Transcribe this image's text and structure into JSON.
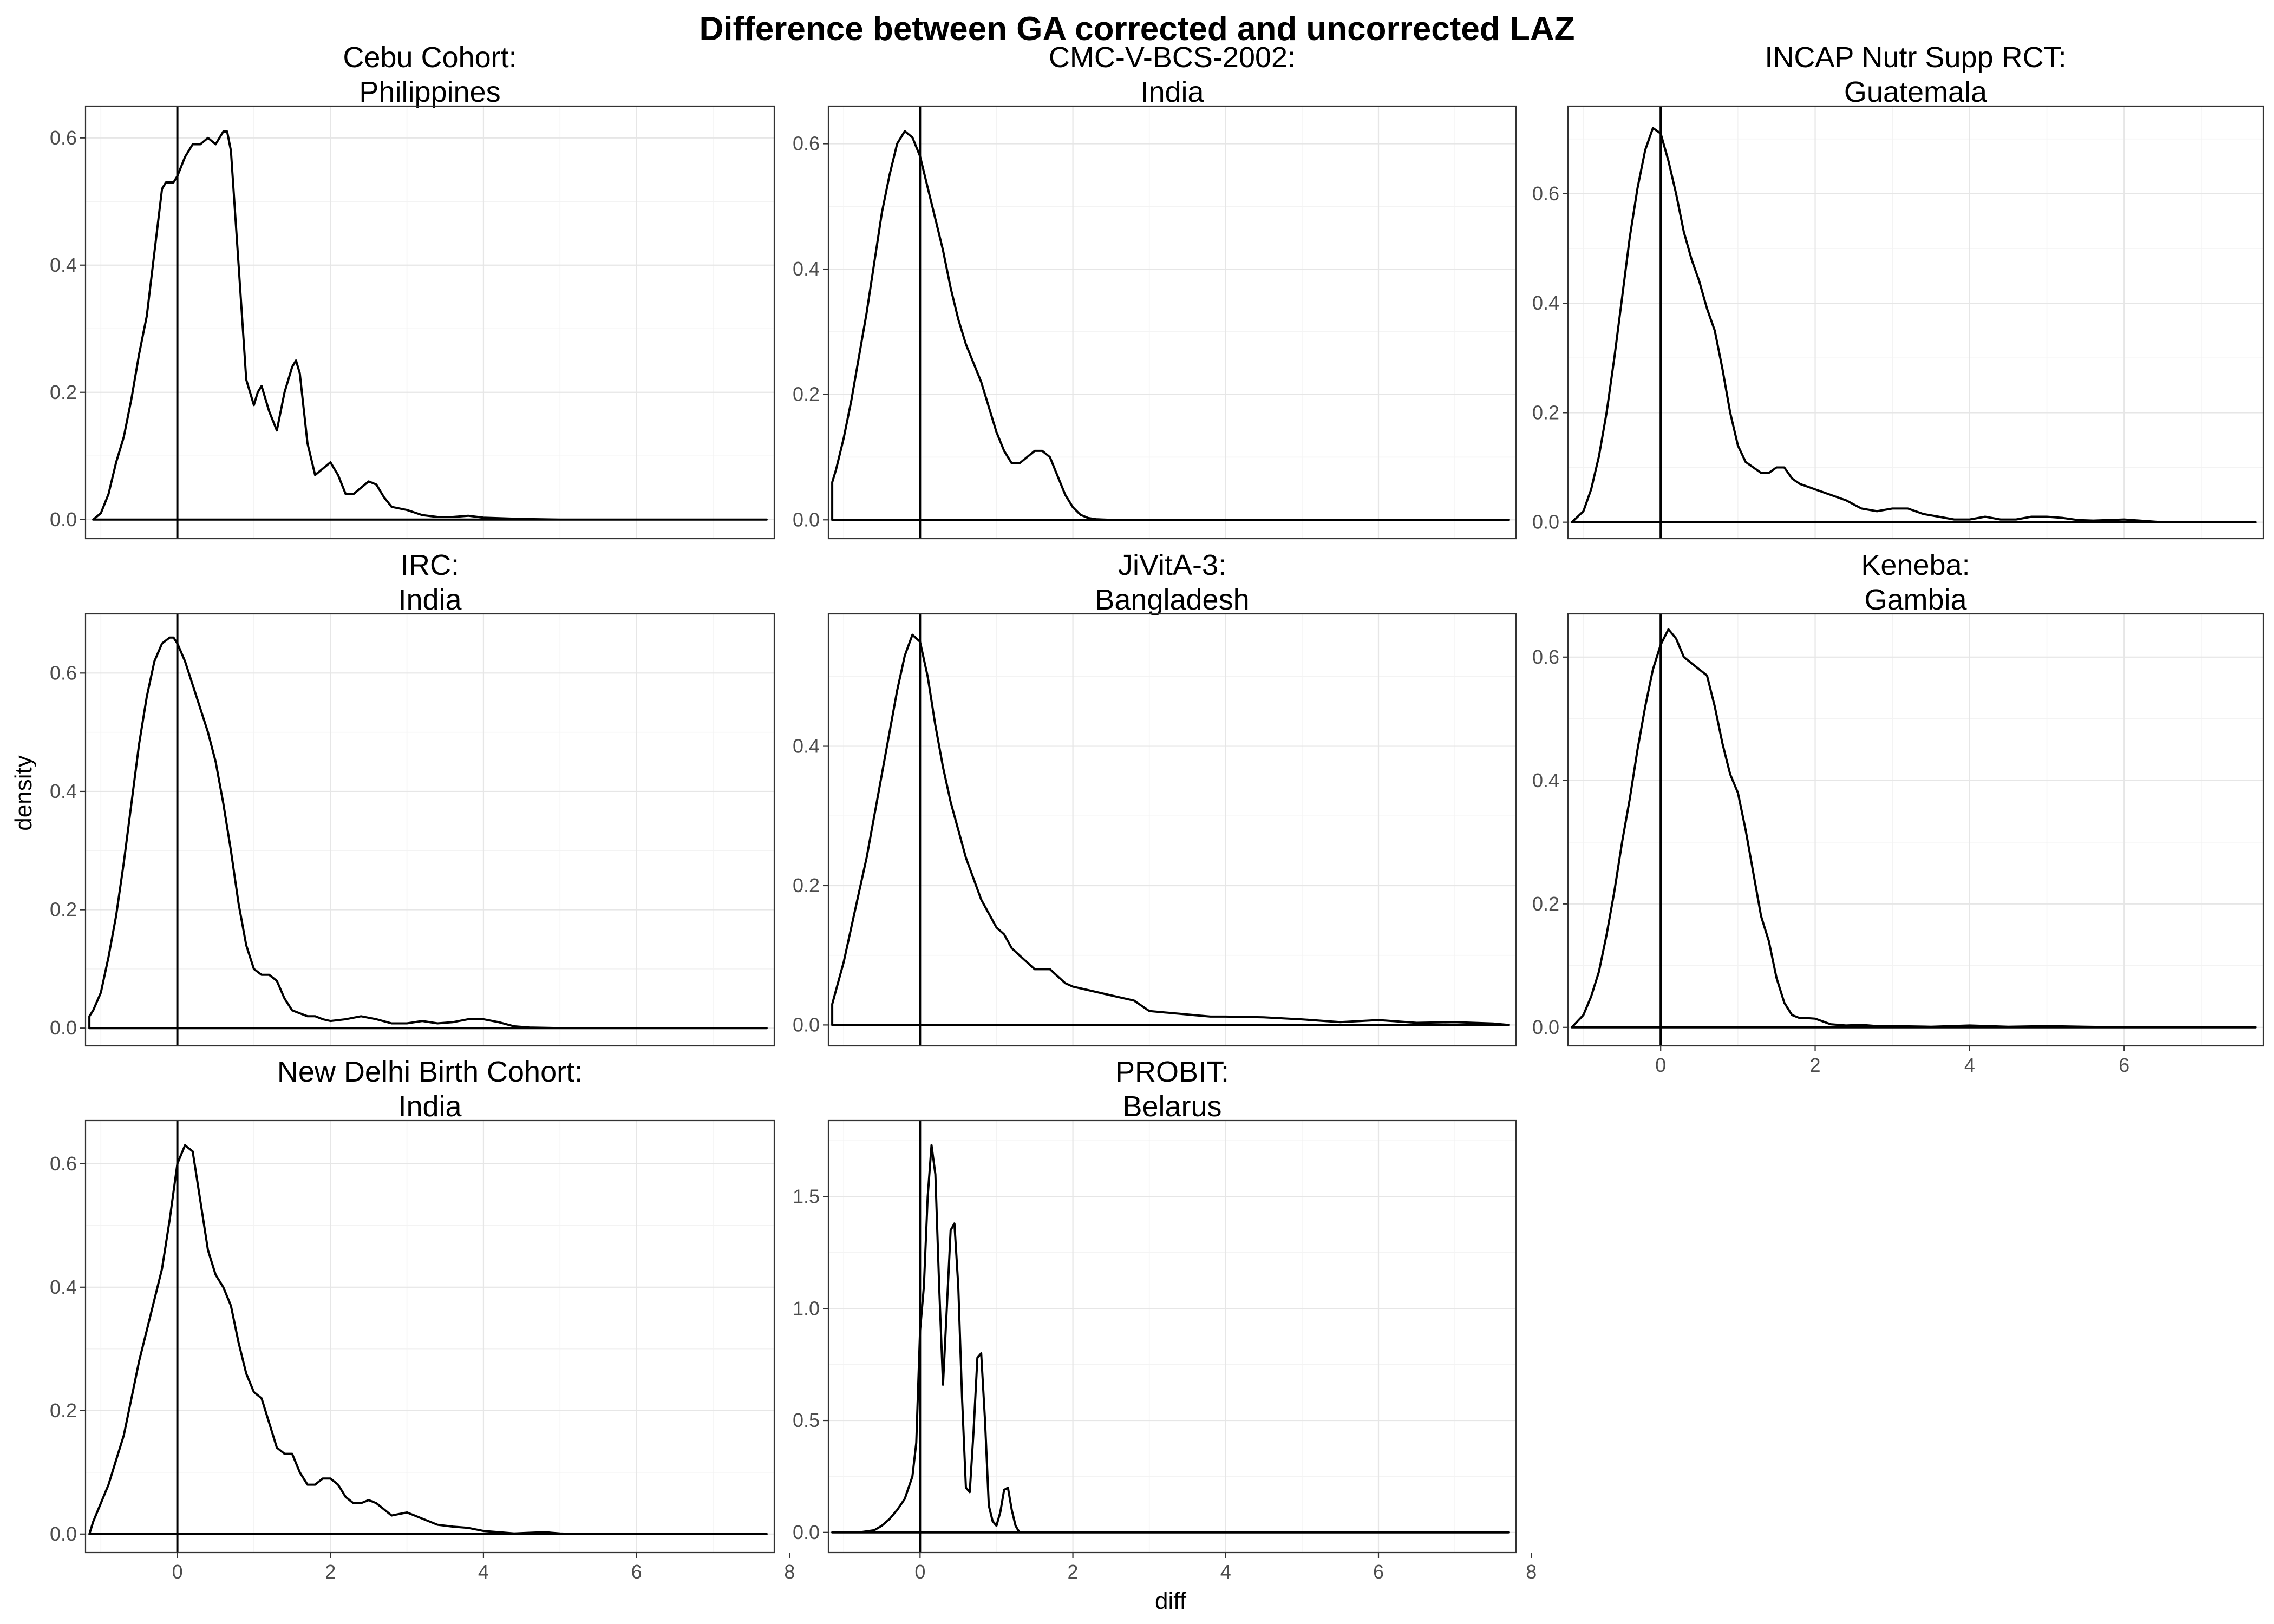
{
  "chart_data": {
    "type": "line",
    "title": "Difference between GA corrected and uncorrected LAZ",
    "xlabel": "diff",
    "ylabel": "density",
    "xlim": [
      -1.2,
      7.8
    ],
    "x_ticks": [
      0,
      2,
      4,
      6,
      8
    ],
    "vline_x": 0,
    "grid": true,
    "panels": [
      {
        "title_line1": "Cebu Cohort:",
        "title_line2": "Philippines",
        "ylim": [
          -0.03,
          0.65
        ],
        "y_ticks": [
          "0.0",
          "0.2",
          "0.4",
          "0.6"
        ],
        "y_tick_values": [
          0,
          0.2,
          0.4,
          0.6
        ],
        "x": [
          -1.1,
          -1.0,
          -0.9,
          -0.8,
          -0.7,
          -0.6,
          -0.5,
          -0.4,
          -0.3,
          -0.2,
          -0.15,
          -0.05,
          0.0,
          0.1,
          0.2,
          0.3,
          0.4,
          0.5,
          0.6,
          0.65,
          0.7,
          0.8,
          0.9,
          1.0,
          1.05,
          1.1,
          1.2,
          1.3,
          1.4,
          1.5,
          1.55,
          1.6,
          1.7,
          1.8,
          1.9,
          2.0,
          2.1,
          2.2,
          2.3,
          2.4,
          2.5,
          2.6,
          2.7,
          2.8,
          3.0,
          3.2,
          3.4,
          3.6,
          3.8,
          4.0,
          4.5,
          5.0,
          5.5,
          6.0,
          7.0,
          7.7
        ],
        "y": [
          0.0,
          0.01,
          0.04,
          0.09,
          0.13,
          0.19,
          0.26,
          0.32,
          0.42,
          0.52,
          0.53,
          0.53,
          0.54,
          0.57,
          0.59,
          0.59,
          0.6,
          0.59,
          0.61,
          0.61,
          0.58,
          0.4,
          0.22,
          0.18,
          0.2,
          0.21,
          0.17,
          0.14,
          0.2,
          0.24,
          0.25,
          0.23,
          0.12,
          0.07,
          0.08,
          0.09,
          0.07,
          0.04,
          0.04,
          0.05,
          0.06,
          0.055,
          0.035,
          0.02,
          0.015,
          0.007,
          0.004,
          0.004,
          0.006,
          0.003,
          0.001,
          0.0,
          0.0,
          0.0,
          0.0,
          0.0
        ]
      },
      {
        "title_line1": "CMC-V-BCS-2002:",
        "title_line2": "India",
        "ylim": [
          -0.03,
          0.66
        ],
        "y_ticks": [
          "0.0",
          "0.2",
          "0.4",
          "0.6"
        ],
        "y_tick_values": [
          0,
          0.2,
          0.4,
          0.6
        ],
        "x": [
          -1.15,
          -1.15,
          -1.1,
          -1.0,
          -0.9,
          -0.8,
          -0.7,
          -0.6,
          -0.5,
          -0.4,
          -0.3,
          -0.2,
          -0.1,
          0.0,
          0.1,
          0.2,
          0.3,
          0.4,
          0.5,
          0.6,
          0.7,
          0.8,
          0.9,
          1.0,
          1.1,
          1.2,
          1.3,
          1.4,
          1.5,
          1.6,
          1.7,
          1.8,
          1.9,
          2.0,
          2.1,
          2.2,
          2.3,
          2.5,
          3.0,
          4.0,
          5.0,
          6.0,
          7.0,
          7.7
        ],
        "y": [
          0.0,
          0.06,
          0.08,
          0.13,
          0.19,
          0.26,
          0.33,
          0.41,
          0.49,
          0.55,
          0.6,
          0.62,
          0.61,
          0.58,
          0.53,
          0.48,
          0.43,
          0.37,
          0.32,
          0.28,
          0.25,
          0.22,
          0.18,
          0.14,
          0.11,
          0.09,
          0.09,
          0.1,
          0.11,
          0.11,
          0.1,
          0.07,
          0.04,
          0.02,
          0.008,
          0.003,
          0.001,
          0.0,
          0.0,
          0.0,
          0.0,
          0.0,
          0.0,
          0.0
        ]
      },
      {
        "title_line1": "INCAP Nutr Supp RCT:",
        "title_line2": "Guatemala",
        "ylim": [
          -0.03,
          0.76
        ],
        "y_ticks": [
          "0.0",
          "0.2",
          "0.4",
          "0.6"
        ],
        "y_tick_values": [
          0,
          0.2,
          0.4,
          0.6
        ],
        "x": [
          -1.15,
          -1.0,
          -0.9,
          -0.8,
          -0.7,
          -0.6,
          -0.5,
          -0.4,
          -0.3,
          -0.2,
          -0.1,
          0.0,
          0.1,
          0.2,
          0.3,
          0.4,
          0.5,
          0.6,
          0.7,
          0.8,
          0.9,
          1.0,
          1.1,
          1.2,
          1.3,
          1.4,
          1.5,
          1.6,
          1.7,
          1.8,
          1.9,
          2.0,
          2.2,
          2.4,
          2.6,
          2.8,
          3.0,
          3.2,
          3.4,
          3.6,
          3.8,
          4.0,
          4.2,
          4.4,
          4.6,
          4.8,
          5.0,
          5.2,
          5.4,
          5.6,
          5.8,
          6.0,
          6.2,
          6.5,
          7.0,
          7.7
        ],
        "y": [
          0.0,
          0.02,
          0.06,
          0.12,
          0.2,
          0.3,
          0.41,
          0.52,
          0.61,
          0.68,
          0.72,
          0.71,
          0.66,
          0.6,
          0.53,
          0.48,
          0.44,
          0.39,
          0.35,
          0.28,
          0.2,
          0.14,
          0.11,
          0.1,
          0.09,
          0.09,
          0.1,
          0.1,
          0.08,
          0.07,
          0.065,
          0.06,
          0.05,
          0.04,
          0.025,
          0.02,
          0.025,
          0.025,
          0.015,
          0.01,
          0.005,
          0.005,
          0.01,
          0.005,
          0.005,
          0.01,
          0.01,
          0.008,
          0.004,
          0.003,
          0.004,
          0.005,
          0.003,
          0.0,
          0.0,
          0.0
        ]
      },
      {
        "title_line1": "IRC:",
        "title_line2": "India",
        "ylim": [
          -0.03,
          0.7
        ],
        "y_ticks": [
          "0.0",
          "0.2",
          "0.4",
          "0.6"
        ],
        "y_tick_values": [
          0,
          0.2,
          0.4,
          0.6
        ],
        "x": [
          -1.15,
          -1.1,
          -1.0,
          -0.9,
          -0.8,
          -0.7,
          -0.6,
          -0.5,
          -0.4,
          -0.3,
          -0.2,
          -0.1,
          -0.05,
          0.0,
          0.1,
          0.2,
          0.3,
          0.4,
          0.5,
          0.6,
          0.7,
          0.8,
          0.9,
          1.0,
          1.1,
          1.2,
          1.3,
          1.4,
          1.5,
          1.6,
          1.7,
          1.8,
          1.9,
          2.0,
          2.2,
          2.4,
          2.6,
          2.8,
          3.0,
          3.2,
          3.4,
          3.6,
          3.8,
          4.0,
          4.2,
          4.4,
          4.6,
          5.0,
          6.0,
          7.0,
          7.7
        ],
        "y": [
          0.02,
          0.03,
          0.06,
          0.12,
          0.19,
          0.28,
          0.38,
          0.48,
          0.56,
          0.62,
          0.65,
          0.66,
          0.66,
          0.65,
          0.62,
          0.58,
          0.54,
          0.5,
          0.45,
          0.38,
          0.3,
          0.21,
          0.14,
          0.1,
          0.09,
          0.09,
          0.08,
          0.05,
          0.03,
          0.025,
          0.02,
          0.02,
          0.015,
          0.012,
          0.015,
          0.02,
          0.015,
          0.008,
          0.008,
          0.012,
          0.008,
          0.01,
          0.015,
          0.015,
          0.01,
          0.003,
          0.001,
          0.0,
          0.0,
          0.0,
          0.0
        ]
      },
      {
        "title_line1": "JiVitA-3:",
        "title_line2": "Bangladesh",
        "ylim": [
          -0.03,
          0.59
        ],
        "y_ticks": [
          "0.0",
          "0.2",
          "0.4"
        ],
        "y_tick_values": [
          0,
          0.2,
          0.4
        ],
        "x": [
          -1.15,
          -1.1,
          -1.0,
          -0.9,
          -0.8,
          -0.7,
          -0.6,
          -0.5,
          -0.4,
          -0.3,
          -0.2,
          -0.1,
          0.0,
          0.1,
          0.2,
          0.3,
          0.4,
          0.5,
          0.6,
          0.7,
          0.8,
          0.9,
          1.0,
          1.1,
          1.2,
          1.3,
          1.4,
          1.5,
          1.6,
          1.7,
          1.8,
          1.9,
          2.0,
          2.2,
          2.4,
          2.6,
          2.8,
          3.0,
          3.2,
          3.4,
          3.6,
          3.8,
          4.0,
          4.5,
          5.0,
          5.5,
          6.0,
          6.5,
          7.0,
          7.5,
          7.7
        ],
        "y": [
          0.03,
          0.05,
          0.09,
          0.14,
          0.19,
          0.24,
          0.3,
          0.36,
          0.42,
          0.48,
          0.53,
          0.56,
          0.55,
          0.5,
          0.43,
          0.37,
          0.32,
          0.28,
          0.24,
          0.21,
          0.18,
          0.16,
          0.14,
          0.13,
          0.11,
          0.1,
          0.09,
          0.08,
          0.08,
          0.08,
          0.07,
          0.06,
          0.055,
          0.05,
          0.045,
          0.04,
          0.035,
          0.02,
          0.018,
          0.016,
          0.014,
          0.012,
          0.012,
          0.011,
          0.008,
          0.004,
          0.007,
          0.003,
          0.004,
          0.002,
          0.0
        ]
      },
      {
        "title_line1": "Keneba:",
        "title_line2": "Gambia",
        "ylim": [
          -0.03,
          0.67
        ],
        "y_ticks": [
          "0.0",
          "0.2",
          "0.4",
          "0.6"
        ],
        "y_tick_values": [
          0,
          0.2,
          0.4,
          0.6
        ],
        "x": [
          -1.15,
          -1.0,
          -0.9,
          -0.8,
          -0.7,
          -0.6,
          -0.5,
          -0.4,
          -0.3,
          -0.2,
          -0.1,
          0.0,
          0.1,
          0.2,
          0.3,
          0.4,
          0.5,
          0.6,
          0.7,
          0.8,
          0.9,
          1.0,
          1.1,
          1.2,
          1.3,
          1.4,
          1.5,
          1.6,
          1.7,
          1.8,
          1.9,
          2.0,
          2.2,
          2.4,
          2.6,
          2.8,
          3.0,
          3.5,
          4.0,
          4.5,
          5.0,
          5.5,
          6.0,
          7.0,
          7.7
        ],
        "y": [
          0.0,
          0.02,
          0.05,
          0.09,
          0.15,
          0.22,
          0.3,
          0.37,
          0.45,
          0.52,
          0.58,
          0.62,
          0.645,
          0.63,
          0.6,
          0.59,
          0.58,
          0.57,
          0.52,
          0.46,
          0.41,
          0.38,
          0.32,
          0.25,
          0.18,
          0.14,
          0.08,
          0.04,
          0.02,
          0.015,
          0.015,
          0.014,
          0.005,
          0.003,
          0.004,
          0.002,
          0.002,
          0.001,
          0.003,
          0.001,
          0.002,
          0.001,
          0.0,
          0.0,
          0.0
        ]
      },
      {
        "title_line1": "New Delhi Birth Cohort:",
        "title_line2": "India",
        "ylim": [
          -0.03,
          0.67
        ],
        "y_ticks": [
          "0.0",
          "0.2",
          "0.4",
          "0.6"
        ],
        "y_tick_values": [
          0,
          0.2,
          0.4,
          0.6
        ],
        "x": [
          -1.15,
          -1.1,
          -1.0,
          -0.9,
          -0.8,
          -0.7,
          -0.6,
          -0.5,
          -0.4,
          -0.3,
          -0.2,
          -0.1,
          0.0,
          0.1,
          0.2,
          0.3,
          0.4,
          0.5,
          0.6,
          0.7,
          0.8,
          0.9,
          1.0,
          1.1,
          1.2,
          1.3,
          1.4,
          1.5,
          1.6,
          1.7,
          1.8,
          1.9,
          2.0,
          2.1,
          2.2,
          2.3,
          2.4,
          2.5,
          2.6,
          2.7,
          2.8,
          3.0,
          3.2,
          3.4,
          3.6,
          3.8,
          4.0,
          4.2,
          4.4,
          4.6,
          4.8,
          5.0,
          5.2,
          6.0,
          7.0,
          7.7
        ],
        "y": [
          0.0,
          0.02,
          0.05,
          0.08,
          0.12,
          0.16,
          0.22,
          0.28,
          0.33,
          0.38,
          0.43,
          0.51,
          0.6,
          0.63,
          0.62,
          0.54,
          0.46,
          0.42,
          0.4,
          0.37,
          0.31,
          0.26,
          0.23,
          0.22,
          0.18,
          0.14,
          0.13,
          0.13,
          0.1,
          0.08,
          0.08,
          0.09,
          0.09,
          0.08,
          0.06,
          0.05,
          0.05,
          0.055,
          0.05,
          0.04,
          0.03,
          0.035,
          0.025,
          0.015,
          0.012,
          0.01,
          0.005,
          0.003,
          0.001,
          0.002,
          0.003,
          0.001,
          0.0,
          0.0,
          0.0,
          0.0
        ]
      },
      {
        "title_line1": "PROBIT:",
        "title_line2": "Belarus",
        "ylim": [
          -0.09,
          1.84
        ],
        "y_ticks": [
          "0.0",
          "0.5",
          "1.0",
          "1.5"
        ],
        "y_tick_values": [
          0,
          0.5,
          1.0,
          1.5
        ],
        "x": [
          -1.15,
          -0.8,
          -0.6,
          -0.5,
          -0.4,
          -0.3,
          -0.2,
          -0.1,
          -0.05,
          0.0,
          0.05,
          0.1,
          0.15,
          0.2,
          0.25,
          0.3,
          0.35,
          0.4,
          0.45,
          0.5,
          0.55,
          0.6,
          0.65,
          0.7,
          0.75,
          0.8,
          0.85,
          0.9,
          0.95,
          1.0,
          1.05,
          1.1,
          1.15,
          1.2,
          1.25,
          1.3,
          1.5,
          2.0,
          3.0,
          4.0,
          5.0,
          6.0,
          7.0,
          7.7
        ],
        "y": [
          0.0,
          0.0,
          0.01,
          0.03,
          0.06,
          0.1,
          0.15,
          0.25,
          0.4,
          0.9,
          1.1,
          1.5,
          1.73,
          1.6,
          1.1,
          0.66,
          1.0,
          1.35,
          1.38,
          1.1,
          0.6,
          0.2,
          0.18,
          0.45,
          0.78,
          0.8,
          0.5,
          0.12,
          0.05,
          0.03,
          0.09,
          0.19,
          0.2,
          0.1,
          0.03,
          0.0,
          0.0,
          0.0,
          0.0,
          0.0,
          0.0,
          0.0,
          0.0,
          0.0
        ]
      }
    ]
  }
}
